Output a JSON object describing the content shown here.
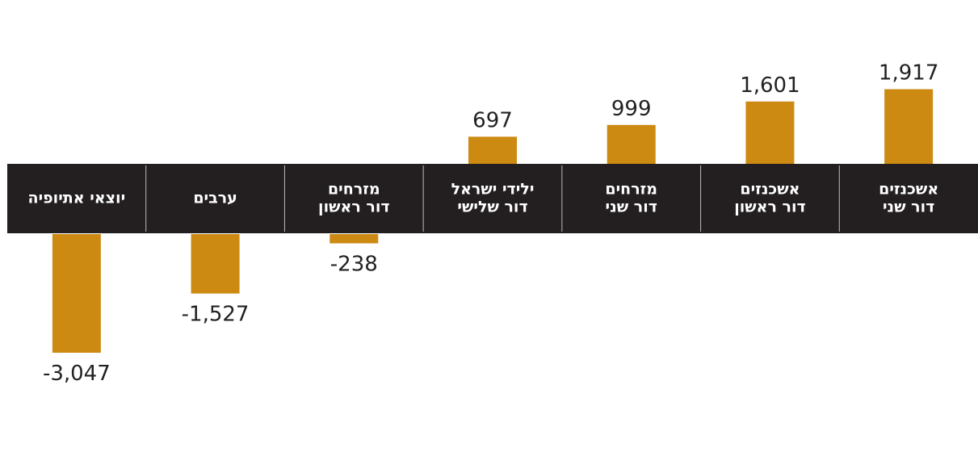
{
  "chart_data": {
    "type": "bar",
    "categories": [
      [
        "אשכנזים",
        "דור שני"
      ],
      [
        "אשכנזים",
        "דור ראשון"
      ],
      [
        "מזרחים",
        "דור שני"
      ],
      [
        "ילידי ישראל",
        "דור שלישי"
      ],
      [
        "מזרחים",
        "דור ראשון"
      ],
      [
        "ערבים"
      ],
      [
        "יוצאי אתיופיה"
      ]
    ],
    "values": [
      1917,
      1601,
      999,
      697,
      -238,
      -1527,
      -3047
    ],
    "value_labels": [
      "1,917",
      "1,601",
      "999",
      "697",
      "-238",
      "-1,527",
      "-3,047"
    ],
    "color": "#cc8a12"
  }
}
